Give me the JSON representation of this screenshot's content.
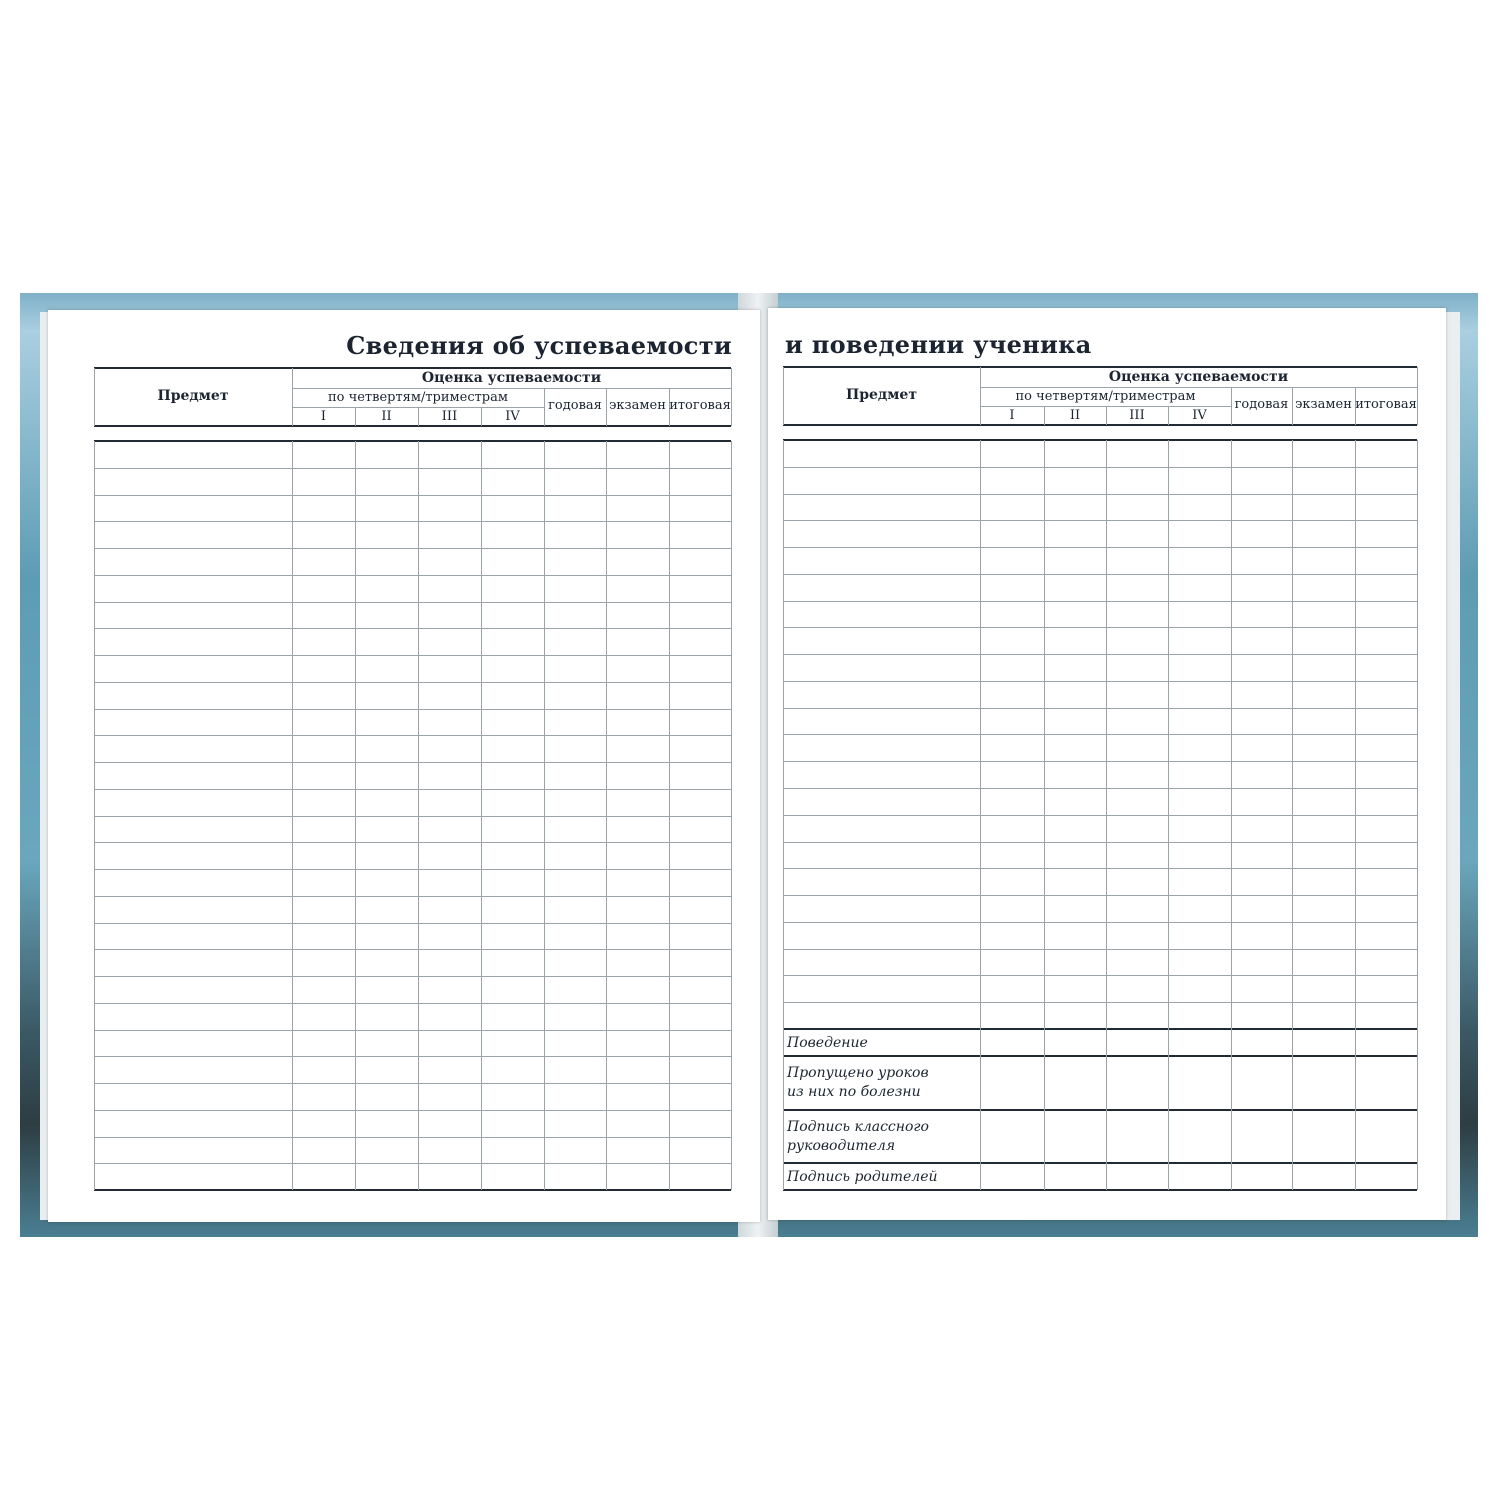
{
  "left_page": {
    "title": "Сведения об успеваемости",
    "header": {
      "subject": "Предмет",
      "grade": "Оценка успеваемости",
      "by_quarter": "по четвертям/триместрам",
      "quarters": [
        "I",
        "II",
        "III",
        "IV"
      ],
      "annual": "годовая",
      "exam": "экзамен",
      "final": "итоговая"
    },
    "row_count": 28
  },
  "right_page": {
    "title": "и поведении ученика",
    "header": {
      "subject": "Предмет",
      "grade": "Оценка успеваемости",
      "by_quarter": "по четвертям/триместрам",
      "quarters": [
        "I",
        "II",
        "III",
        "IV"
      ],
      "annual": "годовая",
      "exam": "экзамен",
      "final": "итоговая"
    },
    "row_count": 22,
    "footer_rows": [
      {
        "line1": "Поведение",
        "line2": ""
      },
      {
        "line1": "Пропущено уроков",
        "line2": "из них по болезни"
      },
      {
        "line1": "Подпись классного",
        "line2": "руководителя"
      },
      {
        "line1": "Подпись родителей",
        "line2": ""
      }
    ]
  },
  "colors": {
    "rule": "#9aa3a8",
    "thick_rule": "#222b33",
    "cover": "#5e9cb4"
  }
}
